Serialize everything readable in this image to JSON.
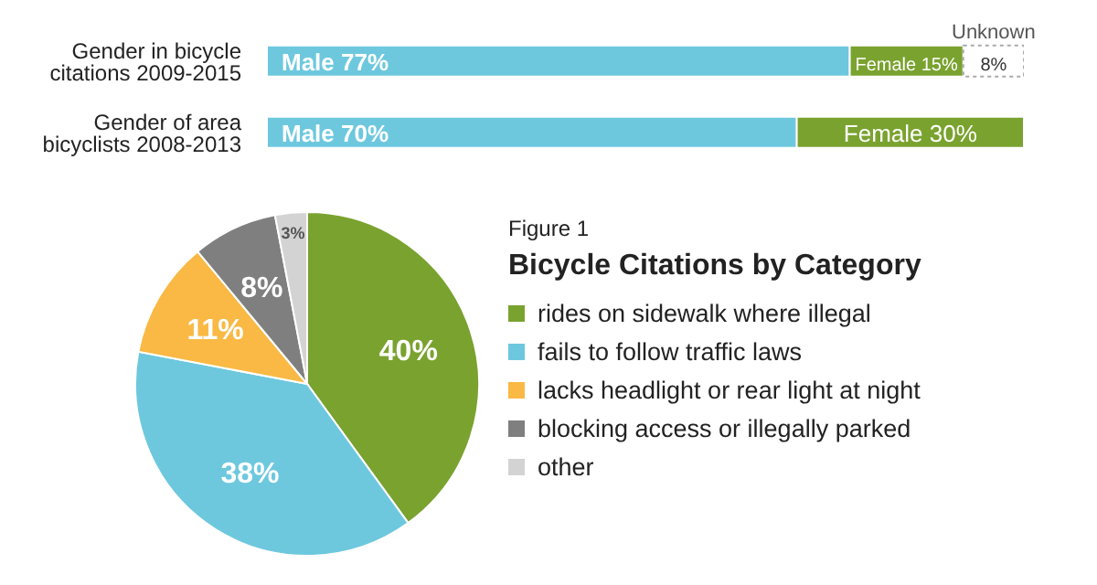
{
  "chart_data": [
    {
      "type": "bar",
      "orientation": "horizontal",
      "stacked": true,
      "categories": [
        "Gender in bicycle citations 2009-2015",
        "Gender of area bicyclists 2008-2013"
      ],
      "tick_labels": "y",
      "series": [
        {
          "name": "Male",
          "color": "#6dc8de",
          "values": [
            77,
            70
          ],
          "value_labels": [
            "77%",
            "70%"
          ]
        },
        {
          "name": "Female",
          "color": "#7aa22f",
          "values": [
            15,
            30
          ],
          "value_labels": [
            "15%",
            "30%"
          ]
        },
        {
          "name": "Unknown",
          "color": "#ffffff",
          "values": [
            8,
            null
          ],
          "value_labels": [
            "8%",
            null
          ]
        }
      ]
    },
    {
      "type": "pie",
      "subtitle": "Figure 1",
      "title": "Bicycle Citations by Category",
      "legend": "right",
      "categories": [
        "rides on sidewalk where illegal",
        "fails to follow traffic laws",
        "lacks headlight or rear light at night",
        "blocking access or illegally parked",
        "other"
      ],
      "values": [
        40,
        38,
        11,
        8,
        3
      ],
      "value_labels": [
        "40%",
        "38%",
        "11%",
        "8%",
        "3%"
      ],
      "colors": [
        "#7aa22f",
        "#6dc8de",
        "#f9b944",
        "#7f7f7f",
        "#d3d3d3"
      ]
    }
  ]
}
